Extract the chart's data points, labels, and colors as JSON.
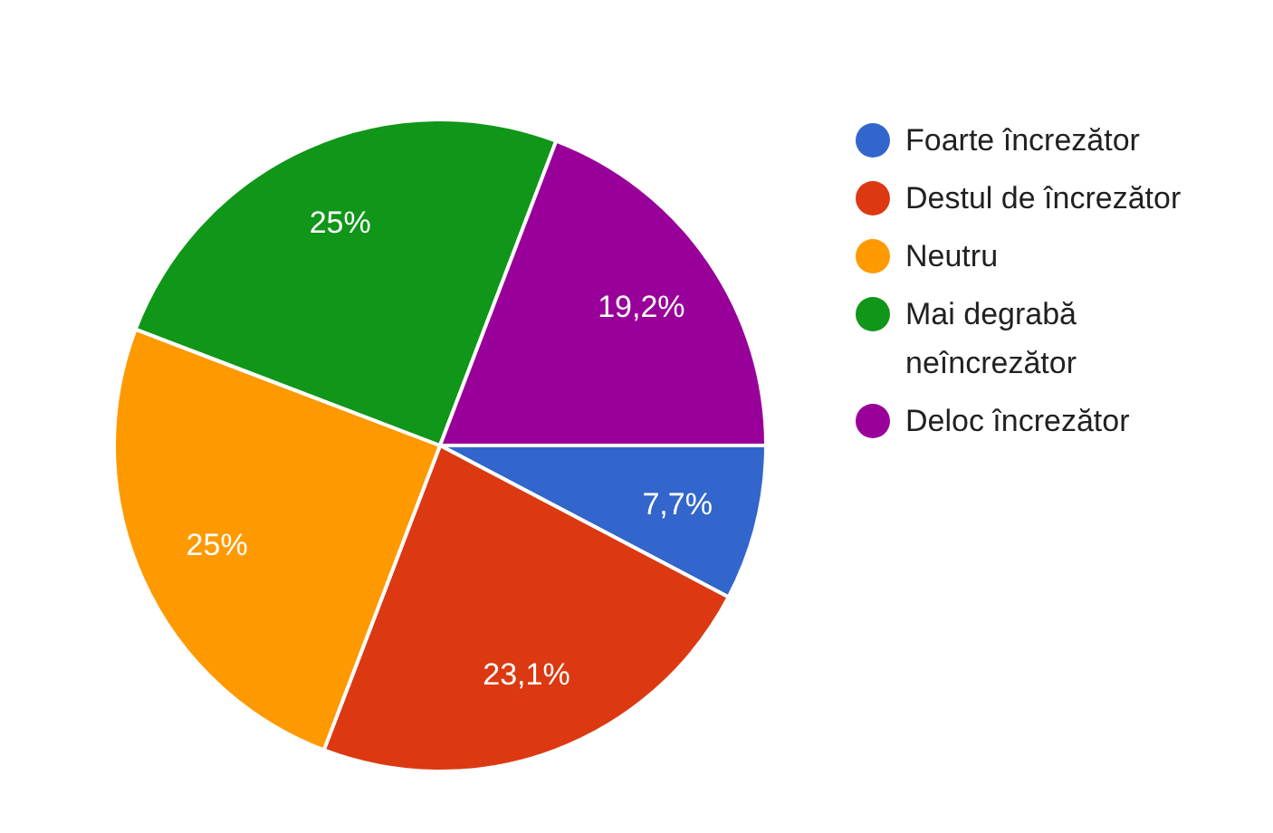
{
  "chart_data": {
    "type": "pie",
    "categories": [
      "Foarte încrezător",
      "Destul de încrezător",
      "Neutru",
      "Mai degrabă neîncrezător",
      "Deloc încrezător"
    ],
    "values": [
      7.7,
      23.1,
      25,
      25,
      19.2
    ],
    "colors": [
      "#3366cc",
      "#dc3912",
      "#ff9900",
      "#109618",
      "#990099"
    ],
    "value_labels": [
      "7,7%",
      "23,1%",
      "25%",
      "25%",
      "19,2%"
    ],
    "legend": "right"
  }
}
